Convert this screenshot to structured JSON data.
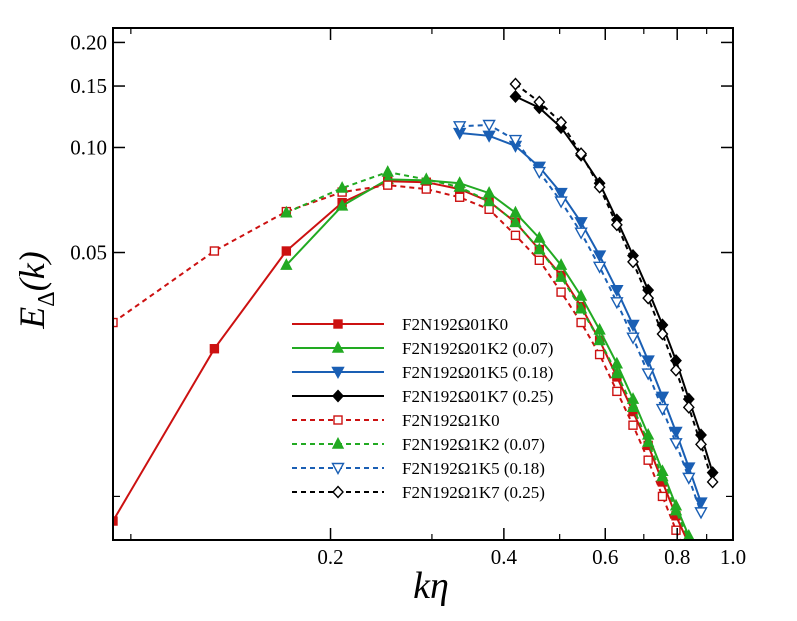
{
  "chart_data": {
    "type": "line",
    "xlabel": "kη",
    "ylabel": {
      "base": "E",
      "subscript": "Δ",
      "arg": "(k)"
    },
    "xscale": "log",
    "yscale": "log",
    "xlim": [
      0.0838,
      1.0
    ],
    "ylim": [
      0.0075,
      0.22
    ],
    "xticks": [
      {
        "value": 0.2,
        "label": "0.2"
      },
      {
        "value": 0.4,
        "label": "0.4"
      },
      {
        "value": 0.6,
        "label": "0.6"
      },
      {
        "value": 0.8,
        "label": "0.8"
      },
      {
        "value": 1.0,
        "label": "1.0"
      }
    ],
    "xticks_minor": [
      0.09,
      0.3,
      0.5,
      0.7,
      0.9
    ],
    "yticks": [
      {
        "value": 0.05,
        "label": "0.05"
      },
      {
        "value": 0.1,
        "label": "0.10"
      },
      {
        "value": 0.15,
        "label": "0.15"
      },
      {
        "value": 0.2,
        "label": "0.20"
      }
    ],
    "yticks_minor": [
      0.01
    ],
    "grid": false,
    "legend_position": "lower-center",
    "series": [
      {
        "name": "F2N192Ω01K0",
        "color": "#cc1111",
        "dash": "solid",
        "marker": "square",
        "filled": true,
        "x": [
          0.0838,
          0.1257,
          0.1676,
          0.2095,
          0.2514,
          0.2933,
          0.3352,
          0.3771,
          0.419,
          0.4609,
          0.5028,
          0.5447,
          0.5866,
          0.6285,
          0.6704,
          0.7123,
          0.7542,
          0.7961,
          0.838
        ],
        "y": [
          0.0085,
          0.0265,
          0.0505,
          0.0695,
          0.08,
          0.0795,
          0.076,
          0.07,
          0.061,
          0.051,
          0.043,
          0.035,
          0.028,
          0.022,
          0.0175,
          0.014,
          0.011,
          0.0088,
          0.0073
        ]
      },
      {
        "name": "F2N192Ω01K2 (0.07)",
        "color": "#22aa22",
        "dash": "solid",
        "marker": "triangle-up",
        "filled": true,
        "x": [
          0.1676,
          0.2095,
          0.2514,
          0.2933,
          0.3352,
          0.3771,
          0.419,
          0.4609,
          0.5028,
          0.5447,
          0.5866,
          0.6285,
          0.6704,
          0.7123,
          0.7542,
          0.7961,
          0.838
        ],
        "y": [
          0.046,
          0.068,
          0.081,
          0.0805,
          0.079,
          0.074,
          0.065,
          0.055,
          0.046,
          0.0375,
          0.03,
          0.024,
          0.019,
          0.015,
          0.0118,
          0.0094,
          0.0077
        ]
      },
      {
        "name": "F2N192Ω01K5 (0.18)",
        "color": "#1a5fb4",
        "dash": "solid",
        "marker": "triangle-down",
        "filled": true,
        "x": [
          0.3352,
          0.3771,
          0.419,
          0.4609,
          0.5028,
          0.5447,
          0.5866,
          0.6285,
          0.6704,
          0.7123,
          0.7542,
          0.7961,
          0.838,
          0.8799
        ],
        "y": [
          0.11,
          0.108,
          0.101,
          0.088,
          0.074,
          0.061,
          0.049,
          0.039,
          0.031,
          0.0245,
          0.0193,
          0.0153,
          0.0121,
          0.0096
        ]
      },
      {
        "name": "F2N192Ω01K7 (0.25)",
        "color": "#000000",
        "dash": "solid",
        "marker": "diamond",
        "filled": true,
        "x": [
          0.419,
          0.4609,
          0.5028,
          0.5447,
          0.5866,
          0.6285,
          0.6704,
          0.7123,
          0.7542,
          0.7961,
          0.838,
          0.8799,
          0.9218
        ],
        "y": [
          0.14,
          0.13,
          0.114,
          0.095,
          0.079,
          0.062,
          0.049,
          0.039,
          0.031,
          0.0245,
          0.019,
          0.015,
          0.0117
        ]
      },
      {
        "name": "F2N192Ω1K0",
        "color": "#cc1111",
        "dash": "dashed",
        "marker": "square",
        "filled": false,
        "x": [
          0.0838,
          0.1257,
          0.1676,
          0.2095,
          0.2514,
          0.2933,
          0.3352,
          0.3771,
          0.419,
          0.4609,
          0.5028,
          0.5447,
          0.5866,
          0.6285,
          0.6704,
          0.7123,
          0.7542,
          0.7961,
          0.838
        ],
        "y": [
          0.0315,
          0.0505,
          0.0655,
          0.0745,
          0.078,
          0.076,
          0.072,
          0.0665,
          0.056,
          0.0475,
          0.0385,
          0.0315,
          0.0255,
          0.02,
          0.016,
          0.0127,
          0.01,
          0.008,
          0.0066
        ]
      },
      {
        "name": "F2N192Ω1K2 (0.07)",
        "color": "#22aa22",
        "dash": "dashed",
        "marker": "triangle-up",
        "filled": true,
        "x": [
          0.1676,
          0.2095,
          0.2514,
          0.2933,
          0.3352,
          0.3771,
          0.419,
          0.4609,
          0.5028,
          0.5447,
          0.5866,
          0.6285,
          0.6704,
          0.7123,
          0.7542,
          0.7961,
          0.838
        ],
        "y": [
          0.065,
          0.0765,
          0.085,
          0.081,
          0.077,
          0.07,
          0.061,
          0.051,
          0.0425,
          0.0345,
          0.028,
          0.0225,
          0.018,
          0.0143,
          0.0114,
          0.0091,
          0.0075
        ]
      },
      {
        "name": "F2N192Ω1K5 (0.18)",
        "color": "#1a5fb4",
        "dash": "dashed",
        "marker": "triangle-down",
        "filled": false,
        "x": [
          0.3352,
          0.3771,
          0.419,
          0.4609,
          0.5028,
          0.5447,
          0.5866,
          0.6285,
          0.6704,
          0.7123,
          0.7542,
          0.7961,
          0.838,
          0.8799
        ],
        "y": [
          0.115,
          0.116,
          0.105,
          0.085,
          0.07,
          0.057,
          0.0455,
          0.036,
          0.0285,
          0.0225,
          0.0178,
          0.0142,
          0.0113,
          0.009
        ]
      },
      {
        "name": "F2N192Ω1K7 (0.25)",
        "color": "#000000",
        "dash": "dashed",
        "marker": "diamond",
        "filled": false,
        "x": [
          0.419,
          0.4609,
          0.5028,
          0.5447,
          0.5866,
          0.6285,
          0.6704,
          0.7123,
          0.7542,
          0.7961,
          0.838,
          0.8799,
          0.9218
        ],
        "y": [
          0.152,
          0.135,
          0.118,
          0.096,
          0.077,
          0.06,
          0.047,
          0.037,
          0.0292,
          0.023,
          0.018,
          0.0141,
          0.011
        ]
      }
    ]
  }
}
